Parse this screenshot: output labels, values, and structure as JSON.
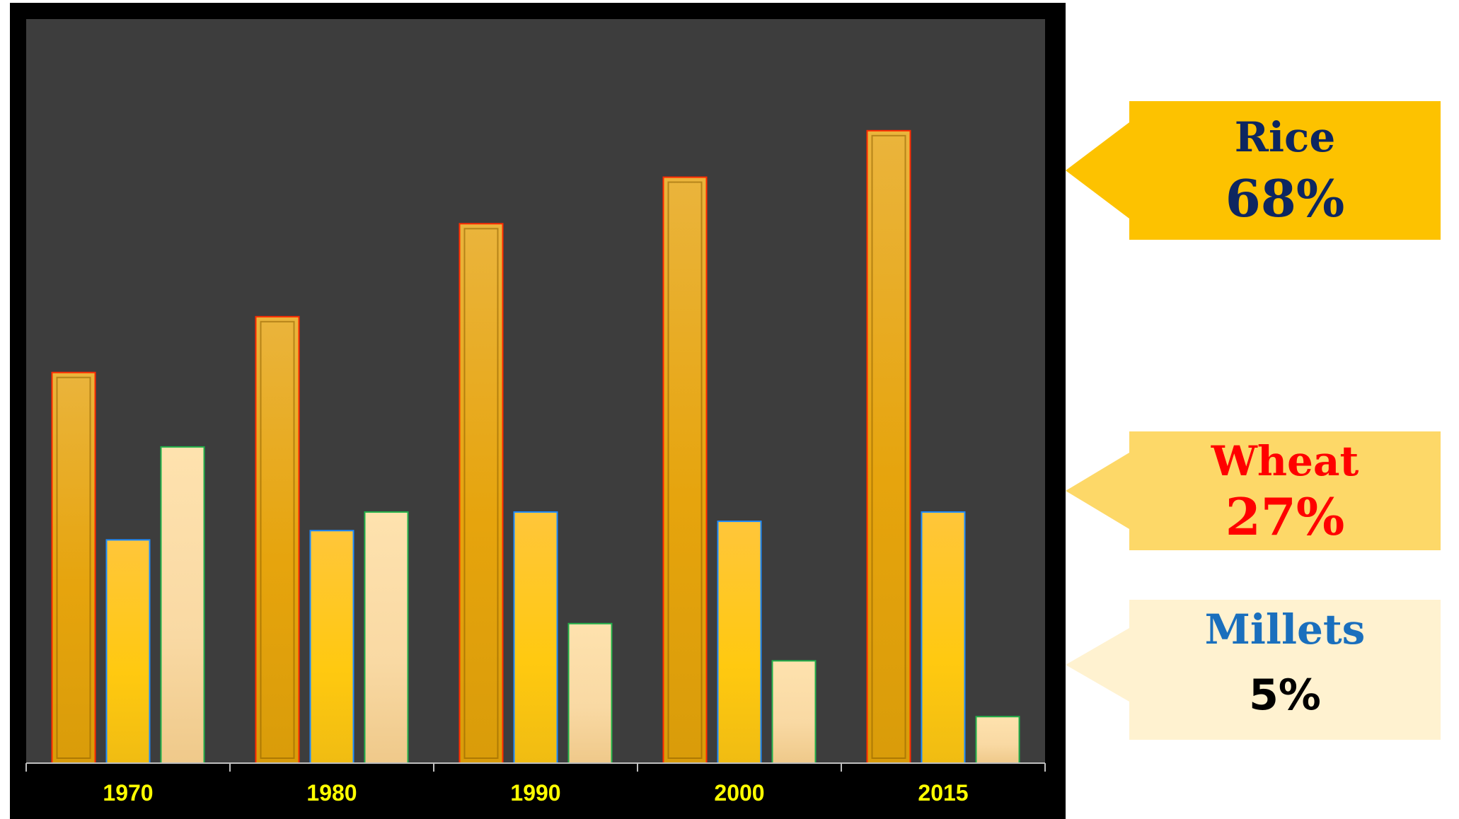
{
  "chart_data": {
    "type": "bar",
    "title": "",
    "xlabel": "",
    "ylabel": "",
    "categories": [
      "1970",
      "1980",
      "1990",
      "2000",
      "2015"
    ],
    "series": [
      {
        "name": "Rice",
        "values": [
          42,
          48,
          58,
          63,
          68
        ],
        "color": "#e6a817"
      },
      {
        "name": "Wheat",
        "values": [
          24,
          25,
          27,
          26,
          27
        ],
        "color": "#ffc526"
      },
      {
        "name": "Millets",
        "values": [
          34,
          27,
          15,
          11,
          5
        ],
        "color": "#fde1ad"
      }
    ],
    "ylim": [
      0,
      80
    ],
    "grid": false,
    "legend": "right",
    "plot_background": "#3d3d3d",
    "frame_color": "#000000",
    "tick_label_color": "#ffff00"
  },
  "legend": [
    {
      "name": "Rice",
      "value": "68%",
      "box_color": "#fdc200",
      "name_color": "#0d2660",
      "value_color": "#0d2660"
    },
    {
      "name": "Wheat",
      "value": "27%",
      "box_color": "#fdd868",
      "name_color": "#ff0000",
      "value_color": "#ff0000"
    },
    {
      "name": "Millets",
      "value": "5%",
      "box_color": "#fff2d0",
      "name_color": "#1a6fbd",
      "value_color": "#000000"
    }
  ]
}
